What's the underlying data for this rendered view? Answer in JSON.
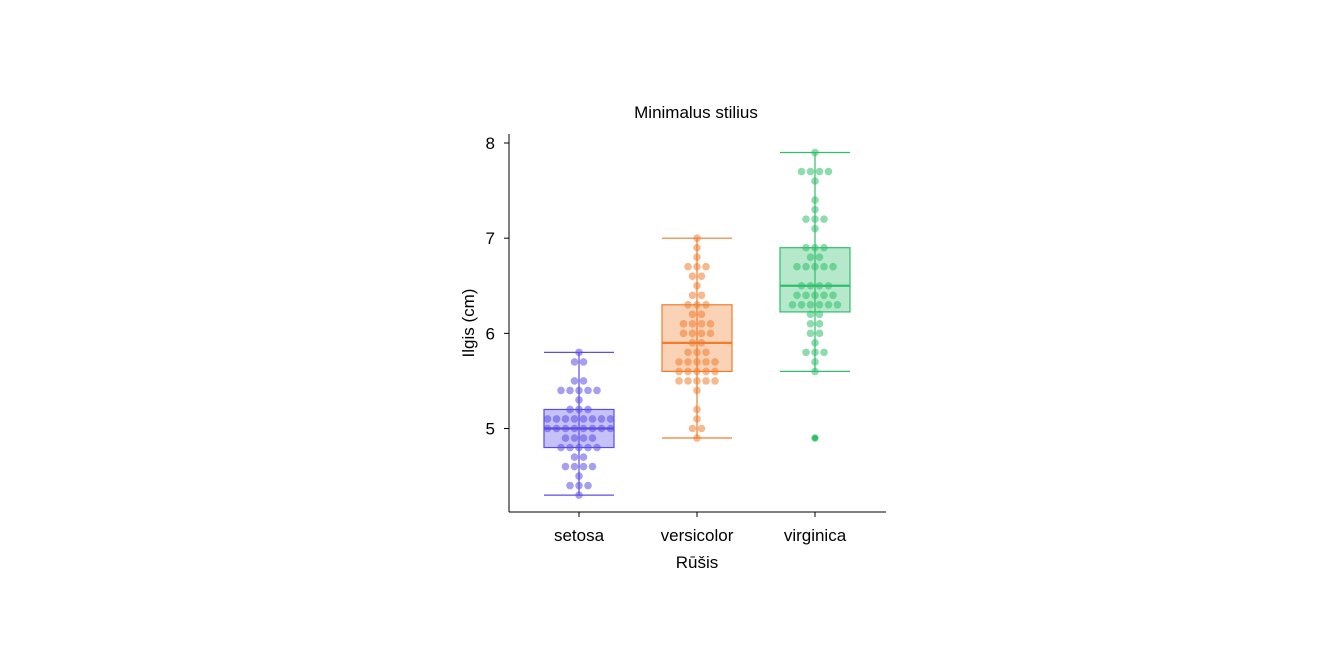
{
  "chart_data": {
    "type": "box",
    "title": "Minimalus stilius",
    "xlabel": "Rūšis",
    "ylabel": "Ilgis (cm)",
    "ylim": [
      4.15,
      8.1
    ],
    "yticks": [
      5,
      6,
      7,
      8
    ],
    "categories": [
      "setosa",
      "versicolor",
      "virginica"
    ],
    "grid": false,
    "legend": "none",
    "series": [
      {
        "category": "setosa",
        "color": "#5b4ee6",
        "box": {
          "whisker_low": 4.3,
          "q1": 4.8,
          "median": 5.0,
          "q3": 5.2,
          "whisker_high": 5.8
        },
        "outliers": [],
        "points": [
          4.3,
          4.4,
          4.4,
          4.4,
          4.5,
          4.6,
          4.6,
          4.6,
          4.6,
          4.7,
          4.7,
          4.8,
          4.8,
          4.8,
          4.8,
          4.8,
          4.9,
          4.9,
          4.9,
          4.9,
          5.0,
          5.0,
          5.0,
          5.0,
          5.0,
          5.0,
          5.0,
          5.0,
          5.1,
          5.1,
          5.1,
          5.1,
          5.1,
          5.1,
          5.1,
          5.1,
          5.2,
          5.2,
          5.2,
          5.3,
          5.4,
          5.4,
          5.4,
          5.4,
          5.4,
          5.5,
          5.5,
          5.7,
          5.7,
          5.8
        ]
      },
      {
        "category": "versicolor",
        "color": "#f07d2e",
        "box": {
          "whisker_low": 4.9,
          "q1": 5.6,
          "median": 5.9,
          "q3": 6.3,
          "whisker_high": 7.0
        },
        "outliers": [],
        "points": [
          4.9,
          5.0,
          5.0,
          5.1,
          5.2,
          5.4,
          5.5,
          5.5,
          5.5,
          5.5,
          5.5,
          5.6,
          5.6,
          5.6,
          5.6,
          5.6,
          5.7,
          5.7,
          5.7,
          5.7,
          5.7,
          5.8,
          5.8,
          5.8,
          5.9,
          5.9,
          6.0,
          6.0,
          6.0,
          6.0,
          6.1,
          6.1,
          6.1,
          6.1,
          6.2,
          6.2,
          6.3,
          6.3,
          6.3,
          6.4,
          6.4,
          6.5,
          6.6,
          6.6,
          6.7,
          6.7,
          6.7,
          6.8,
          6.9,
          7.0
        ]
      },
      {
        "category": "virginica",
        "color": "#2fbf6a",
        "box": {
          "whisker_low": 5.6,
          "q1": 6.225,
          "median": 6.5,
          "q3": 6.9,
          "whisker_high": 7.9
        },
        "outliers": [
          4.9
        ],
        "points": [
          4.9,
          5.6,
          5.7,
          5.8,
          5.8,
          5.8,
          5.9,
          6.0,
          6.0,
          6.1,
          6.1,
          6.2,
          6.2,
          6.3,
          6.3,
          6.3,
          6.3,
          6.3,
          6.3,
          6.4,
          6.4,
          6.4,
          6.4,
          6.4,
          6.5,
          6.5,
          6.5,
          6.5,
          6.7,
          6.7,
          6.7,
          6.7,
          6.7,
          6.8,
          6.8,
          6.9,
          6.9,
          6.9,
          7.1,
          7.2,
          7.2,
          7.2,
          7.3,
          7.4,
          7.6,
          7.7,
          7.7,
          7.7,
          7.7,
          7.9
        ]
      }
    ]
  }
}
